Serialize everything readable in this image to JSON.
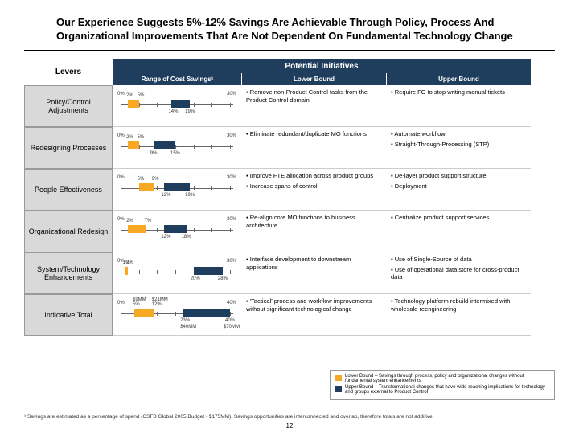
{
  "title": "Our Experience Suggests 5%-12% Savings Are Achievable Through Policy, Process And Organizational Improvements That Are Not Dependent On Fundamental Technology Change",
  "headers": {
    "levers": "Levers",
    "potential": "Potential Initiatives",
    "range": "Range of Cost Savings¹",
    "lower": "Lower Bound",
    "upper": "Upper Bound"
  },
  "colors": {
    "lower": "#f9a825",
    "upper": "#1f3d5c",
    "leverbg": "#d9d9d9"
  },
  "rows": [
    {
      "lever": "Policy/Control Adjustments",
      "axis_min": 0,
      "axis_max": 30,
      "axis_labels": [
        "0%",
        "30%"
      ],
      "lower": {
        "from": 2,
        "to": 5,
        "label_lo": "2%",
        "label_hi": "5%"
      },
      "upper": {
        "from": 14,
        "to": 19,
        "label_lo": "14%",
        "label_hi": "19%"
      },
      "lower_text": [
        "Remove non-Product Control tasks from the Product Control domain"
      ],
      "upper_text": [
        "Require FO to stop writing manual tickets"
      ]
    },
    {
      "lever": "Redesigning Processes",
      "axis_min": 0,
      "axis_max": 30,
      "axis_labels": [
        "0%",
        "30%"
      ],
      "lower": {
        "from": 2,
        "to": 5,
        "label_lo": "2%",
        "label_hi": "5%"
      },
      "upper": {
        "from": 9,
        "to": 15,
        "label_lo": "9%",
        "label_hi": "15%"
      },
      "lower_text": [
        "Eliminate redundant/duplicate MO functions"
      ],
      "upper_text": [
        "Automate workflow",
        "Straight-Through-Processing (STP)"
      ]
    },
    {
      "lever": "People Effectiveness",
      "axis_min": 0,
      "axis_max": 30,
      "axis_labels": [
        "0%",
        "30%"
      ],
      "lower": {
        "from": 5,
        "to": 9,
        "label_lo": "5%",
        "label_hi": "9%"
      },
      "upper": {
        "from": 12,
        "to": 19,
        "label_lo": "12%",
        "label_hi": "19%"
      },
      "lower_text": [
        "Improve FTE allocation across product groups",
        "Increase spans of control"
      ],
      "upper_text": [
        "De-layer product support structure",
        "Deployment"
      ]
    },
    {
      "lever": "Organizational Redesign",
      "axis_min": 0,
      "axis_max": 30,
      "axis_labels": [
        "0%",
        "30%"
      ],
      "lower": {
        "from": 2,
        "to": 7,
        "label_lo": "2%",
        "label_hi": "7%"
      },
      "upper": {
        "from": 12,
        "to": 18,
        "label_lo": "12%",
        "label_hi": "18%"
      },
      "lower_text": [
        "Re-align core MO functions to business architecture"
      ],
      "upper_text": [
        "Centralize product support services"
      ]
    },
    {
      "lever": "System/Technology Enhancements",
      "axis_min": 0,
      "axis_max": 30,
      "axis_labels": [
        "0%",
        "30%"
      ],
      "lower": {
        "from": 1,
        "to": 2,
        "label_lo": "1%",
        "label_hi": "2%"
      },
      "upper": {
        "from": 20,
        "to": 28,
        "label_lo": "20%",
        "label_hi": "28%"
      },
      "lower_text": [
        "Interface development to downstream applications"
      ],
      "upper_text": [
        "Use of Single-Source of data",
        "Use of operational data store for cross-product data"
      ]
    },
    {
      "lever": "Indicative Total",
      "axis_min": 0,
      "axis_max": 40,
      "axis_labels": [
        "0%",
        "40%"
      ],
      "lower": {
        "from": 5,
        "to": 12,
        "label_lo": "5%",
        "label_hi": "12%",
        "sub_lo": "$9MM",
        "sub_hi": "$21MM"
      },
      "upper": {
        "from": 23,
        "to": 40,
        "label_lo": "23%",
        "label_hi": "40%",
        "sub_lo": "$40MM",
        "sub_hi": "$70MM"
      },
      "lower_text": [
        "'Tactical' process and workflow improvements without significant technological change"
      ],
      "upper_text": [
        "Technology platform rebuild intermixed with wholesale reengineering"
      ]
    }
  ],
  "legend": {
    "lower": "Lower Bound – Savings through process, policy and organizational changes without fundamental system enhancements",
    "upper": "Upper Bound – Transformational changes that have wide-reaching implications for technology and groups external to Product Control"
  },
  "footnote": "¹ Savings are estimated as a percentage of spend (CSFB Global 2005 Budget - $175MM). Savings opportunities are interconnected and overlap, therefore totals are not additive",
  "page": "12"
}
